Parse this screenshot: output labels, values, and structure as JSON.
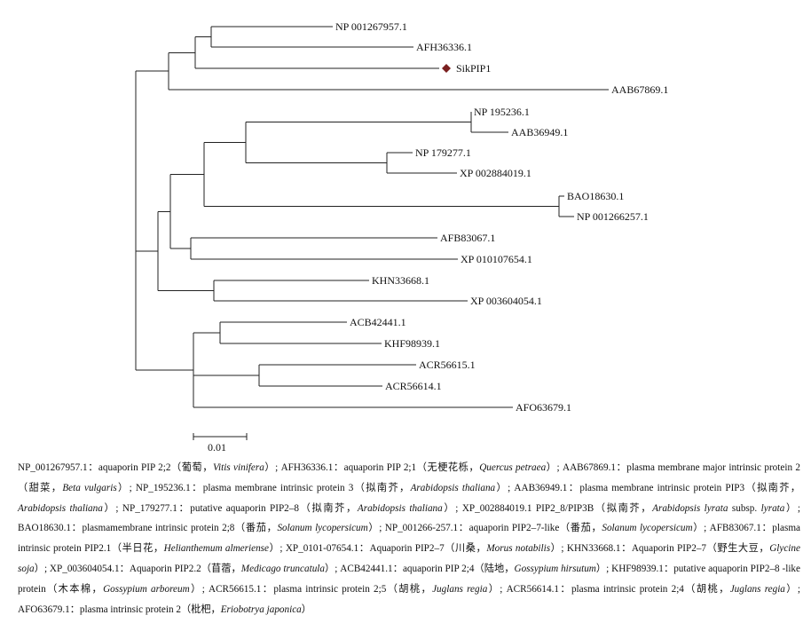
{
  "tree": {
    "marker_color": "#7a1f1f",
    "leaves": [
      {
        "id": "l1",
        "label": "NP 001267957.1"
      },
      {
        "id": "l2",
        "label": "AFH36336.1"
      },
      {
        "id": "l3",
        "label": "SikPIP1",
        "marker": "diamond"
      },
      {
        "id": "l4",
        "label": "AAB67869.1"
      },
      {
        "id": "l5",
        "label": "NP 195236.1"
      },
      {
        "id": "l6",
        "label": "AAB36949.1"
      },
      {
        "id": "l7",
        "label": "NP 179277.1"
      },
      {
        "id": "l8",
        "label": "XP 002884019.1"
      },
      {
        "id": "l9",
        "label": "BAO18630.1"
      },
      {
        "id": "l10",
        "label": "NP 001266257.1"
      },
      {
        "id": "l11",
        "label": "AFB83067.1"
      },
      {
        "id": "l12",
        "label": "XP 010107654.1"
      },
      {
        "id": "l13",
        "label": "KHN33668.1"
      },
      {
        "id": "l14",
        "label": "XP 003604054.1"
      },
      {
        "id": "l15",
        "label": "ACB42441.1"
      },
      {
        "id": "l16",
        "label": "KHF98939.1"
      },
      {
        "id": "l17",
        "label": "ACR56615.1"
      },
      {
        "id": "l18",
        "label": "ACR56614.1"
      },
      {
        "id": "l19",
        "label": "AFO63679.1"
      }
    ],
    "scale_bar": {
      "label": "0.01"
    }
  },
  "caption": [
    {
      "t": "NP_001267957.1：aquaporin PIP 2;2（葡萄，"
    },
    {
      "t": "Vitis vinifera",
      "i": true
    },
    {
      "t": "）; AFH36336.1：aquaporin PIP 2;1（无梗花栎，"
    },
    {
      "t": "Quercus petraea",
      "i": true
    },
    {
      "t": "）; AAB67869.1：plasma membrane major intrinsic protein 2（甜菜，"
    },
    {
      "t": "Beta vulgaris",
      "i": true
    },
    {
      "t": "）; NP_195236.1：plasma membrane intrinsic protein 3（拟南芥，"
    },
    {
      "t": "Arabidopsis thaliana",
      "i": true
    },
    {
      "t": "）; AAB36949.1：plasma membrane intrinsic protein PIP3（拟南芥，"
    },
    {
      "t": "Arabidopsis thaliana",
      "i": true
    },
    {
      "t": "）; NP_179277.1：putative aquaporin PIP2–8（拟南芥，"
    },
    {
      "t": "Arabidopsis thaliana",
      "i": true
    },
    {
      "t": "）; XP_002884019.1 PIP2_8/PIP3B（拟南芥，"
    },
    {
      "t": "Arabidopsis lyrata",
      "i": true
    },
    {
      "t": " subsp. "
    },
    {
      "t": "lyrata",
      "i": true
    },
    {
      "t": "）; BAO18630.1：plasmamembrane intrinsic protein 2;8（番茄，"
    },
    {
      "t": "Solanum lycopersicum",
      "i": true
    },
    {
      "t": "）; NP_001266-257.1：aquaporin PIP2–7-like（番茄，"
    },
    {
      "t": "Solanum lycopersicum",
      "i": true
    },
    {
      "t": "）; AFB83067.1：plasma intrinsic protein PIP2.1（半日花，"
    },
    {
      "t": "Helianthemum almeriense",
      "i": true
    },
    {
      "t": "）; XP_0101-07654.1：Aquaporin PIP2–7（川桑，"
    },
    {
      "t": "Morus notabilis",
      "i": true
    },
    {
      "t": "）; KHN33668.1：Aquaporin PIP2–7（野生大豆，"
    },
    {
      "t": "Glycine soja",
      "i": true
    },
    {
      "t": "）; XP_003604054.1：Aquaporin PIP2.2（苜蓿，"
    },
    {
      "t": "Medicago truncatula",
      "i": true
    },
    {
      "t": "）; ACB42441.1：aquaporin PIP 2;4（陆地，"
    },
    {
      "t": "Gossypium hirsutum",
      "i": true
    },
    {
      "t": "）; KHF98939.1：putative aquaporin PIP2–8 -like protein（木本棉，"
    },
    {
      "t": "Gossypium arboreum",
      "i": true
    },
    {
      "t": "）; ACR56615.1：plasma intrinsic protein 2;5（胡桃，"
    },
    {
      "t": "Juglans regia",
      "i": true
    },
    {
      "t": "）; ACR56614.1：plasma intrinsic protein 2;4（胡桃，"
    },
    {
      "t": "Juglans regia",
      "i": true
    },
    {
      "t": "）; AFO63679.1：plasma intrinsic protein 2（枇杷，"
    },
    {
      "t": "Eriobotrya japonica",
      "i": true
    },
    {
      "t": "）"
    }
  ]
}
